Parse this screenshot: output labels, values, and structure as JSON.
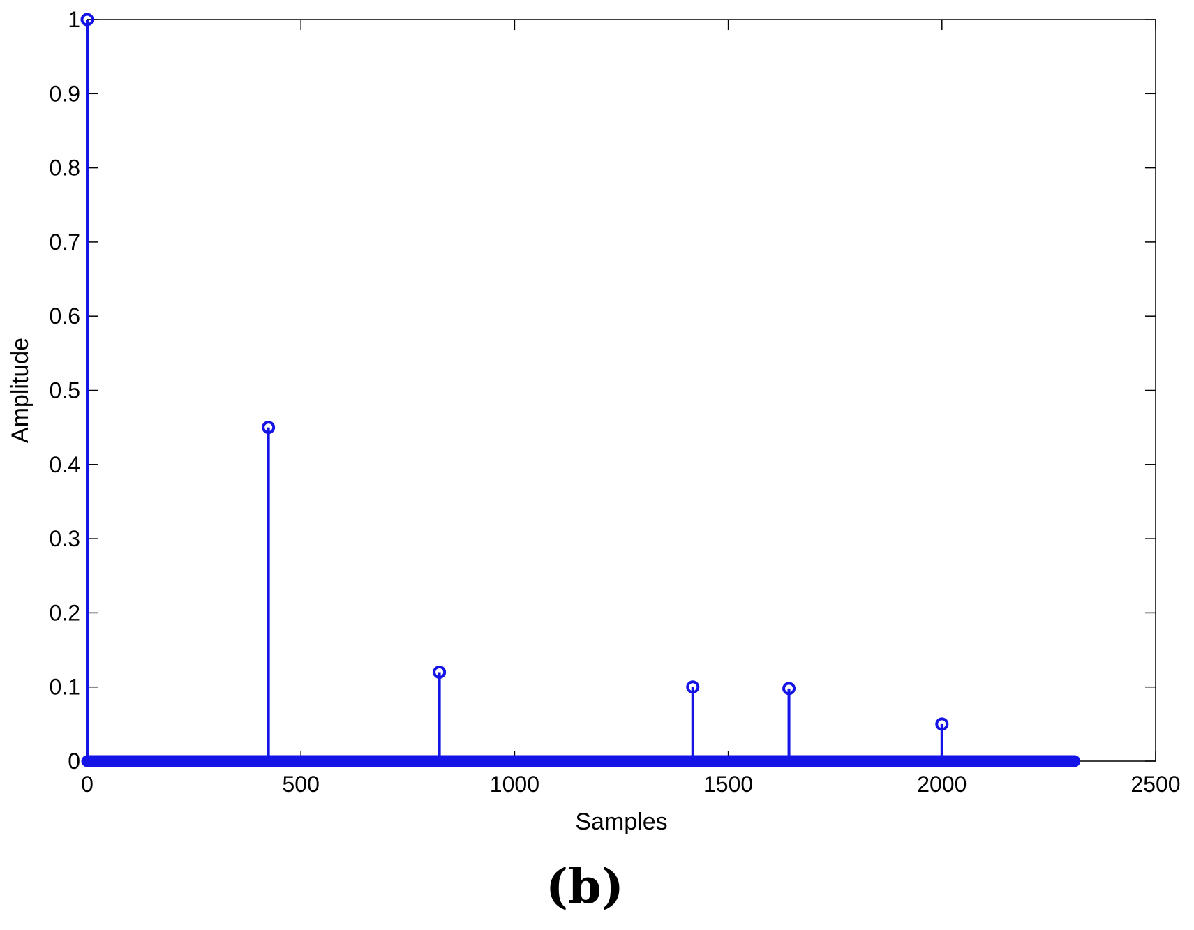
{
  "chart_data": {
    "type": "stem",
    "xlabel": "Samples",
    "ylabel": "Amplitude",
    "panel_label": "(b)",
    "xlim": [
      0,
      2500
    ],
    "ylim": [
      0,
      1
    ],
    "xticks": [
      0,
      500,
      1000,
      1500,
      2000,
      2500
    ],
    "yticks": [
      0,
      0.1,
      0.2,
      0.3,
      0.4,
      0.5,
      0.6,
      0.7,
      0.8,
      0.9,
      1
    ],
    "ytick_labels": [
      "0",
      "0.1",
      "0.2",
      "0.3",
      "0.4",
      "0.5",
      "0.6",
      "0.7",
      "0.8",
      "0.9",
      "1"
    ],
    "grid": false,
    "color": "#1414e6",
    "nonzero_samples": [
      {
        "x": 0,
        "y": 1.0
      },
      {
        "x": 424,
        "y": 0.45
      },
      {
        "x": 824,
        "y": 0.12
      },
      {
        "x": 1417,
        "y": 0.1
      },
      {
        "x": 1642,
        "y": 0.098
      },
      {
        "x": 2000,
        "y": 0.05
      }
    ],
    "zero_samples_range": [
      0,
      2310
    ]
  }
}
